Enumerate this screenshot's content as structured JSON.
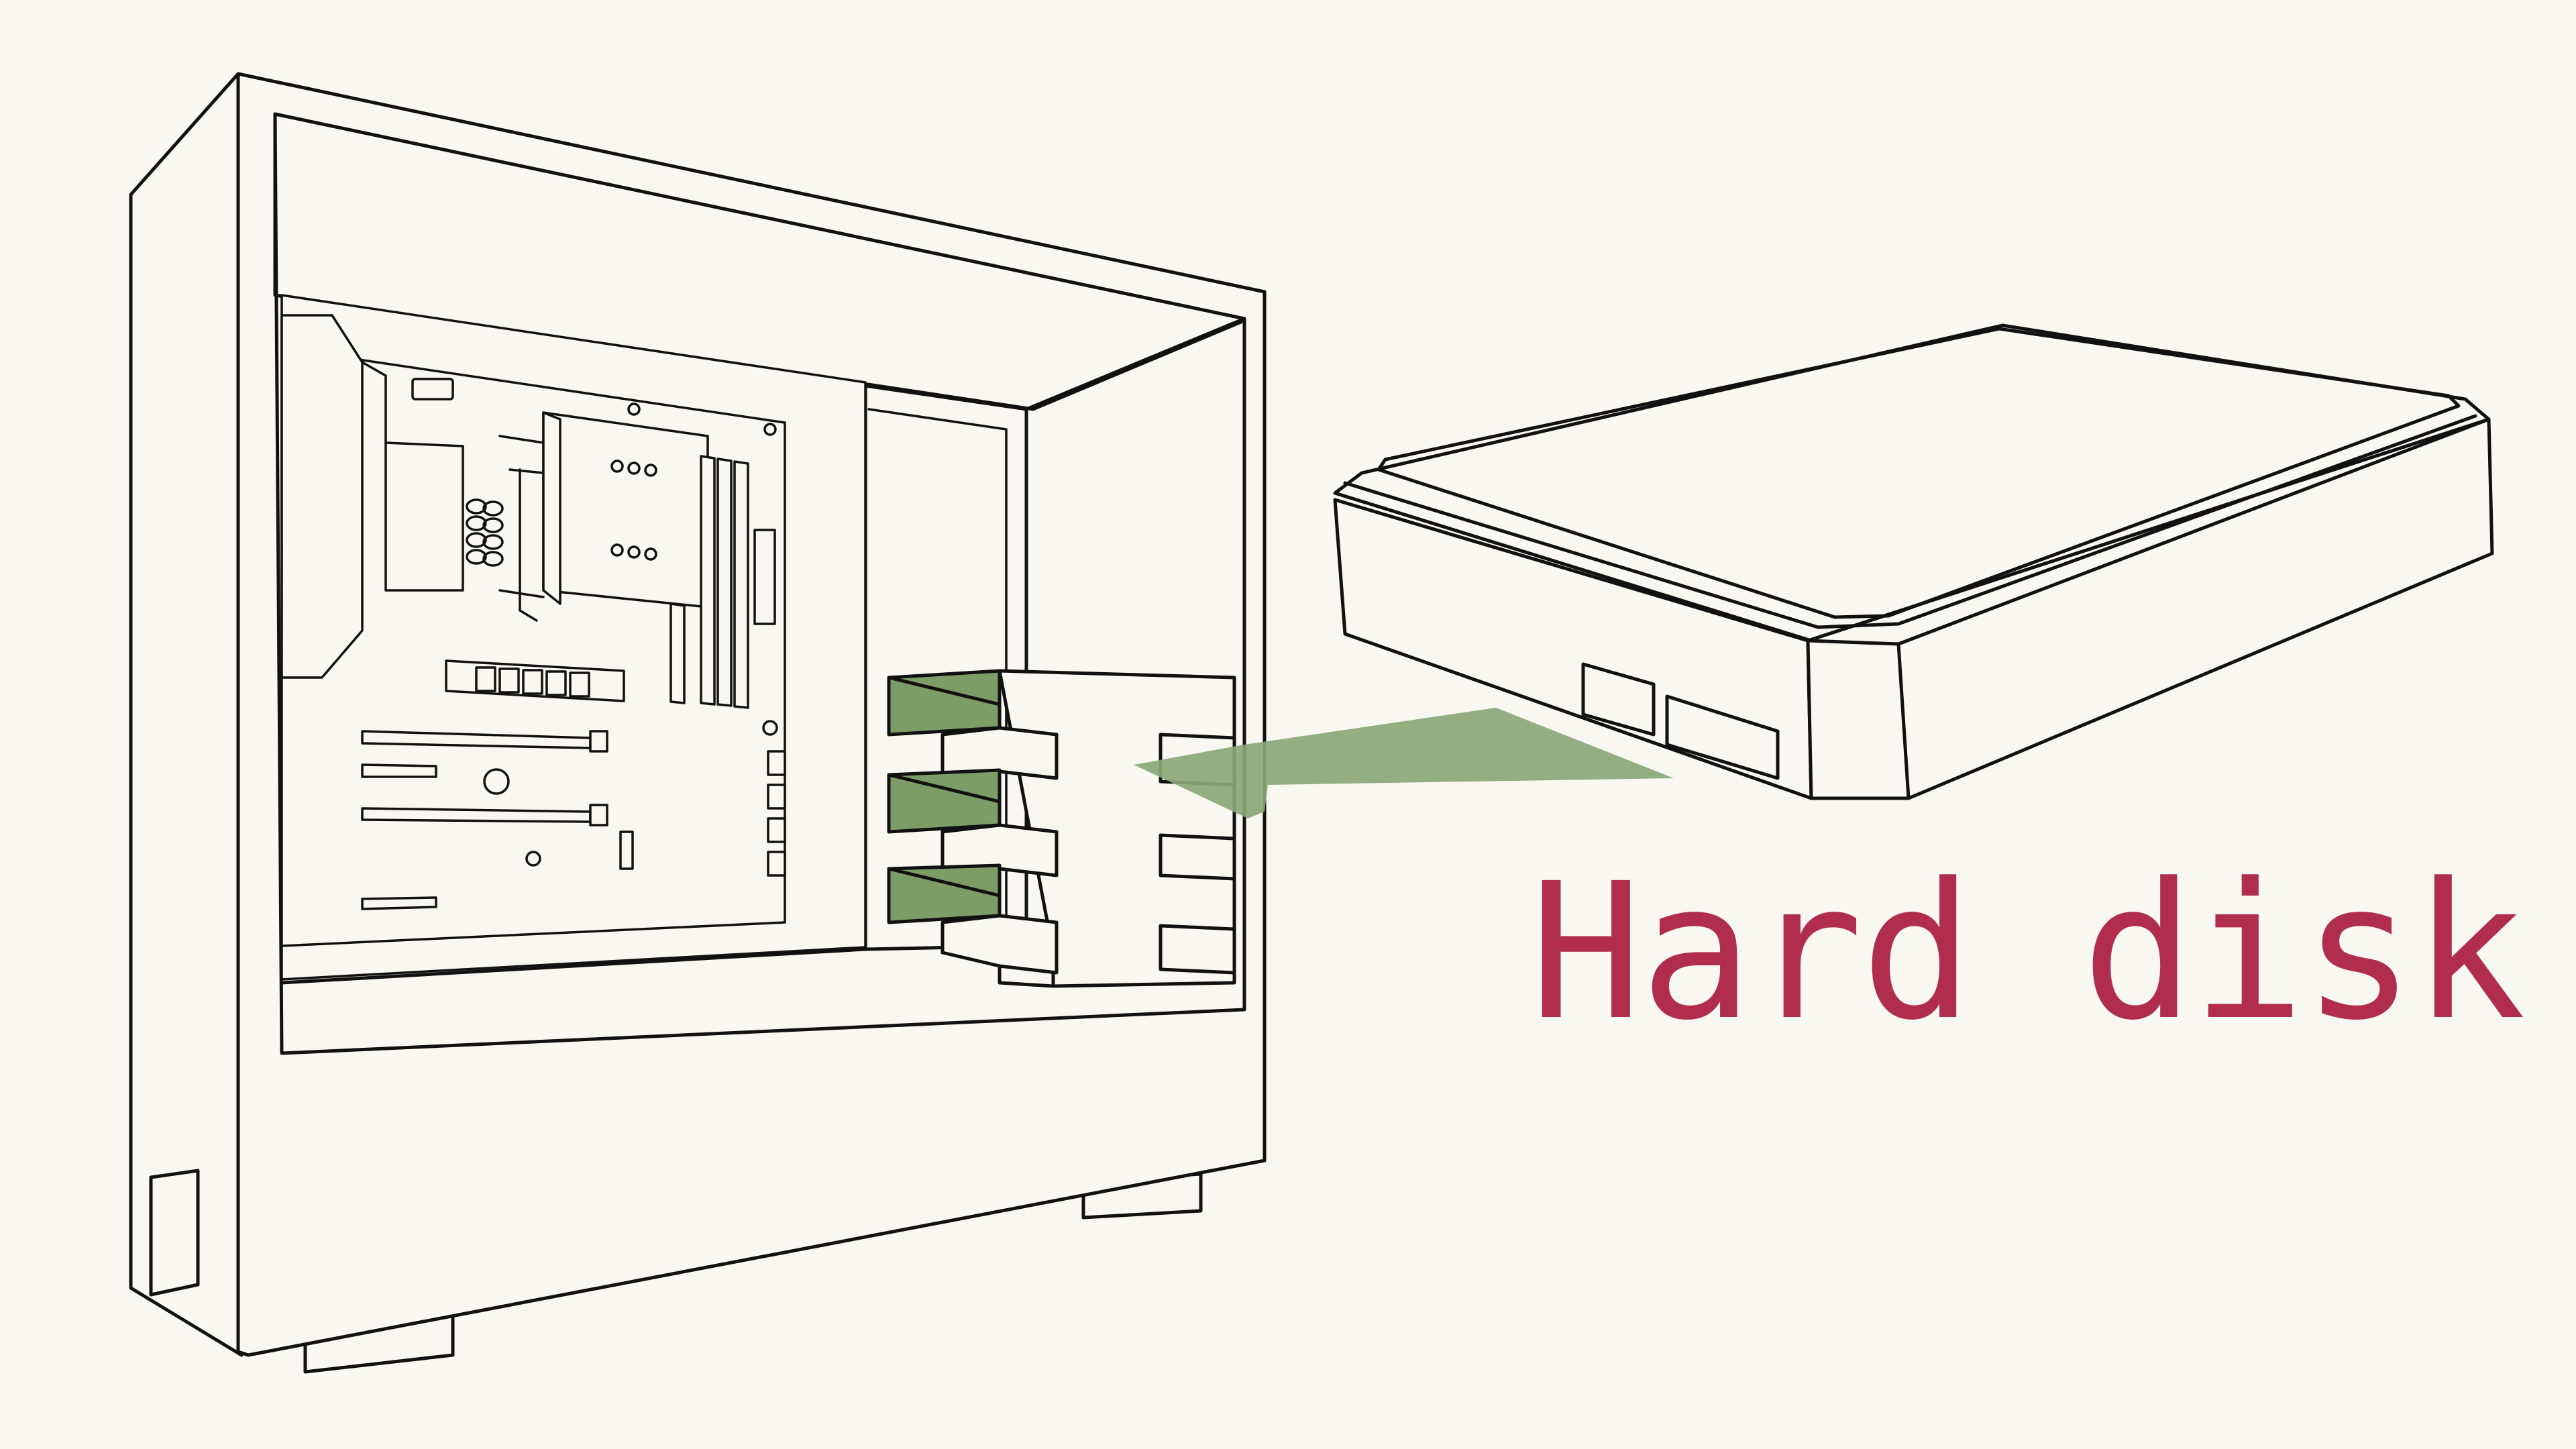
{
  "label": {
    "text": "Hard disk"
  },
  "colors": {
    "background": "#f8f7f1",
    "outline": "#111111",
    "label": "#b02e4b",
    "highlight": "#7d9d67",
    "arrow": "#8aa877"
  },
  "illustration": {
    "left": "pc-tower-case-open",
    "right": "hard-disk-drive",
    "drive_bays_highlighted": 3
  }
}
